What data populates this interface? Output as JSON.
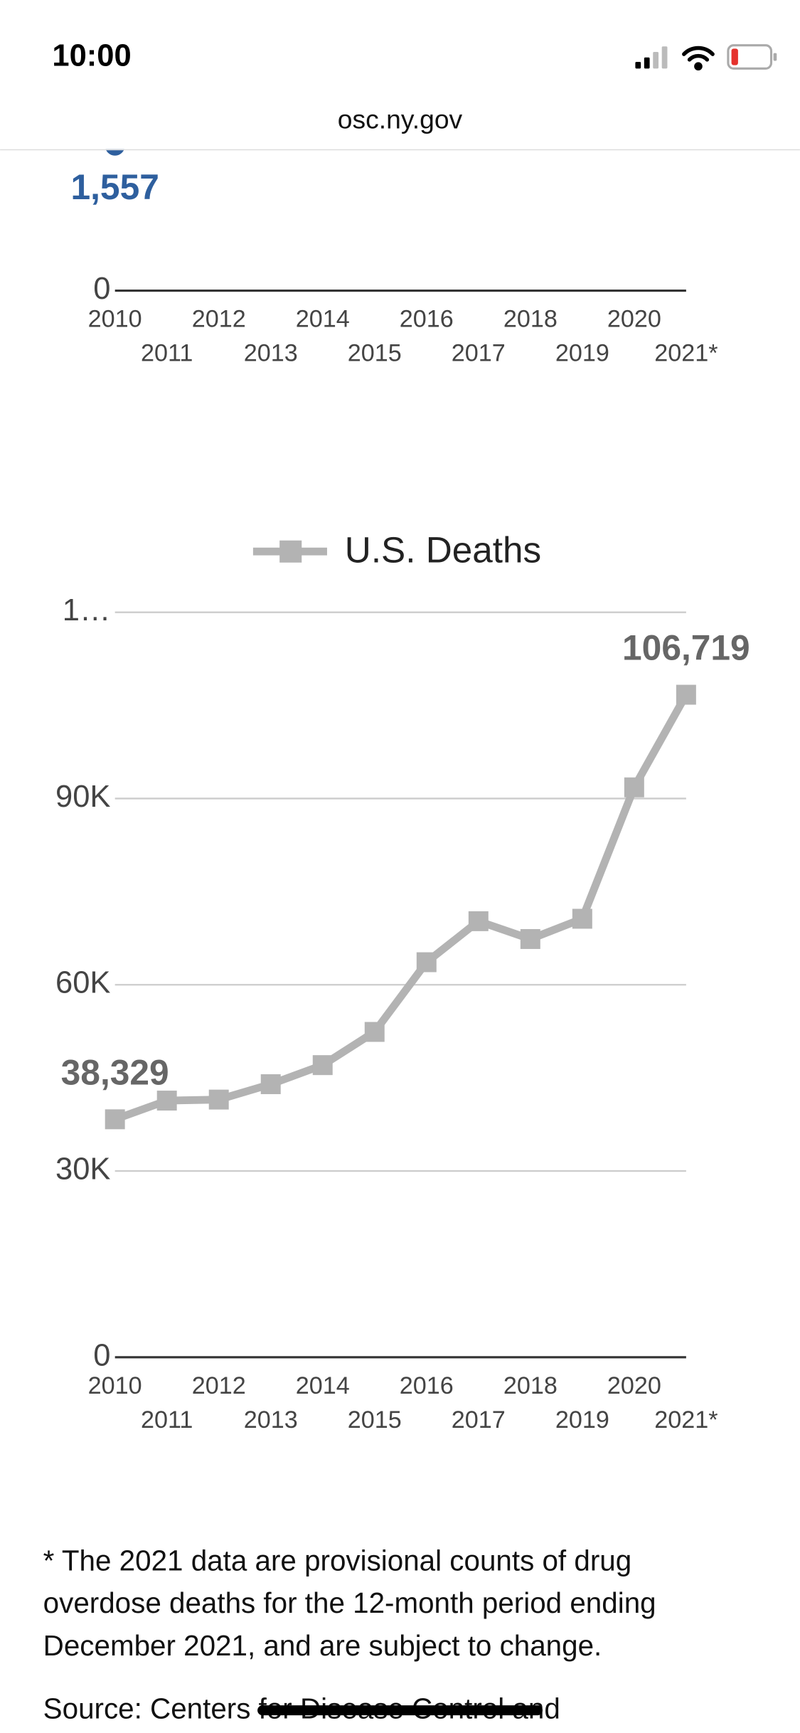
{
  "status_bar": {
    "time": "10:00"
  },
  "address_bar": {
    "url": "osc.ny.gov"
  },
  "chart_data": [
    {
      "type": "line",
      "categories": [
        "2010",
        "2011",
        "2012",
        "2013",
        "2014",
        "2015",
        "2016",
        "2017",
        "2018",
        "2019",
        "2020",
        "2021*"
      ],
      "series": [
        {
          "color": "#2e5f9e",
          "values": [
            1557,
            null,
            null,
            null,
            null,
            null,
            null,
            null,
            null,
            null,
            null,
            null
          ],
          "value_labels": [
            "1,557",
            null,
            null,
            null,
            null,
            null,
            null,
            null,
            null,
            null,
            null,
            null
          ]
        }
      ],
      "ylim": [
        0,
        8000
      ],
      "yticks": [
        0
      ],
      "grid": true
    },
    {
      "type": "line",
      "categories": [
        "2010",
        "2011",
        "2012",
        "2013",
        "2014",
        "2015",
        "2016",
        "2017",
        "2018",
        "2019",
        "2020",
        "2021*"
      ],
      "series": [
        {
          "name": "U.S. Deaths",
          "color": "#b3b3b3",
          "values": [
            38329,
            41340,
            41502,
            43982,
            47055,
            52404,
            63632,
            70237,
            67367,
            70630,
            91799,
            106719
          ],
          "value_labels": [
            "38,329",
            null,
            null,
            null,
            null,
            null,
            null,
            null,
            null,
            null,
            null,
            "106,719"
          ]
        }
      ],
      "ylim": [
        0,
        120000
      ],
      "yticks": [
        0,
        {
          "value": 30000,
          "label": "30K"
        },
        {
          "value": 60000,
          "label": "60K"
        },
        {
          "value": 90000,
          "label": "90K"
        },
        {
          "value": 120000,
          "label": "1…"
        }
      ],
      "grid": true,
      "legend": "top"
    }
  ],
  "footnote": {
    "note_lines": [
      "* The 2021 data are provisional counts of drug",
      "overdose deaths for the 12-month period ending",
      "December 2021, and are subject to change."
    ],
    "source": "Source: Centers for Disease Control and"
  }
}
